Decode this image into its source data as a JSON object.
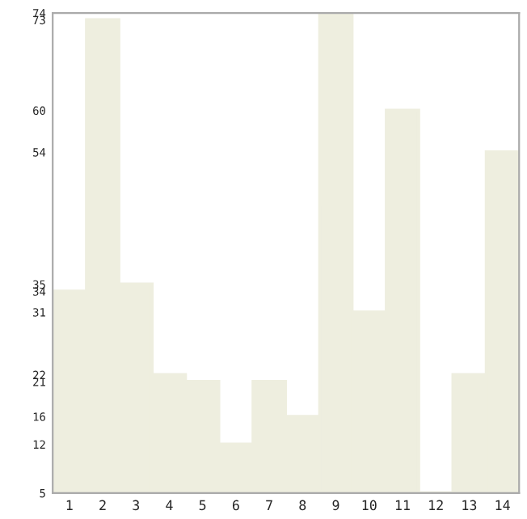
{
  "chart_data": {
    "type": "bar",
    "categories": [
      "1",
      "2",
      "3",
      "4",
      "5",
      "6",
      "7",
      "8",
      "9",
      "10",
      "11",
      "12",
      "13",
      "14"
    ],
    "values": [
      34,
      73,
      35,
      22,
      21,
      12,
      21,
      16,
      74,
      31,
      60,
      5,
      22,
      54
    ],
    "color": "#eeeedf",
    "ylim": [
      5,
      74
    ],
    "yticks": [
      5,
      12,
      16,
      21,
      22,
      31,
      34,
      35,
      54,
      60,
      73,
      74
    ],
    "grid": false
  }
}
